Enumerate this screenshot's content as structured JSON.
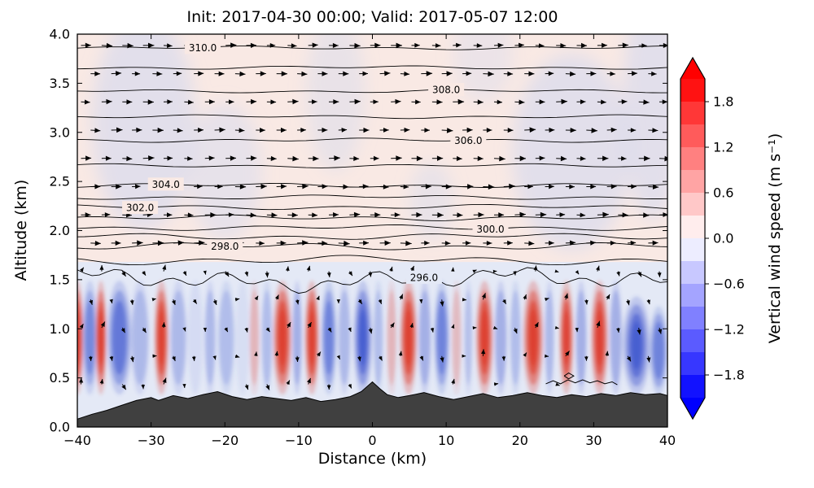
{
  "chart_data": {
    "type": "heatmap",
    "subtype": "filled-contour-atmospheric-cross-section with theta contours, wind quiver and terrain",
    "title": "Init: 2017-04-30 00:00; Valid: 2017-05-07 12:00",
    "xlabel": "Distance (km)",
    "ylabel": "Altitude (km)",
    "xlim": [
      -40,
      40
    ],
    "ylim": [
      0.0,
      4.0
    ],
    "x_tick_labels": [
      "−40",
      "−30",
      "−20",
      "−10",
      "0",
      "10",
      "20",
      "30",
      "40"
    ],
    "y_tick_labels": [
      "0.0",
      "0.5",
      "1.0",
      "1.5",
      "2.0",
      "2.5",
      "3.0",
      "3.5",
      "4.0"
    ],
    "grid": false,
    "colorbar": {
      "label": "Vertical wind speed (m s⁻¹)",
      "tick_labels": [
        "1.8",
        "1.2",
        "0.6",
        "0.0",
        "−0.6",
        "−1.2",
        "−1.8"
      ],
      "vmin": -2.1,
      "vmax": 2.1,
      "band_step": 0.3,
      "cmap": "bwr",
      "extend": "both",
      "color_positive": "#ff0000",
      "color_negative": "#0000ff",
      "color_zero": "#ffffff"
    },
    "background": {
      "upper_fill": "#f9e9e4",
      "lower_fill": "#e4e9f6",
      "split_altitude_km": 1.68,
      "patch_color": "#ccd6f2",
      "patches": [
        {
          "x": -31,
          "y": 3.1,
          "rx": 7,
          "ry": 1.1,
          "a": 0.5
        },
        {
          "x": -20,
          "y": 2.6,
          "rx": 5,
          "ry": 0.7,
          "a": 0.4
        },
        {
          "x": -5,
          "y": 3.4,
          "rx": 4,
          "ry": 0.8,
          "a": 0.35
        },
        {
          "x": 8,
          "y": 2.3,
          "rx": 3,
          "ry": 0.4,
          "a": 0.35
        },
        {
          "x": 27,
          "y": 2.8,
          "rx": 8,
          "ry": 1.0,
          "a": 0.5
        },
        {
          "x": 38,
          "y": 3.3,
          "rx": 4,
          "ry": 1.2,
          "a": 0.5
        },
        {
          "x": 15,
          "y": 3.8,
          "rx": 4,
          "ry": 0.5,
          "a": 0.3
        }
      ]
    },
    "theta_contours": {
      "units": "K",
      "interval": 1.0,
      "line_color": "#000000",
      "label_format": "%.1f",
      "lines": [
        {
          "level": 296,
          "y": 1.5,
          "amp": 0.09
        },
        {
          "level": 297,
          "y": 1.7,
          "amp": 0.05
        },
        {
          "level": 298,
          "y": 1.84,
          "amp": 0.04
        },
        {
          "level": 299,
          "y": 1.94,
          "amp": 0.035
        },
        {
          "level": 300,
          "y": 2.03,
          "amp": 0.03
        },
        {
          "level": 301,
          "y": 2.13,
          "amp": 0.03
        },
        {
          "level": 302,
          "y": 2.24,
          "amp": 0.027
        },
        {
          "level": 303,
          "y": 2.34,
          "amp": 0.025
        },
        {
          "level": 304,
          "y": 2.46,
          "amp": 0.025
        },
        {
          "level": 305,
          "y": 2.66,
          "amp": 0.022
        },
        {
          "level": 306,
          "y": 2.92,
          "amp": 0.022
        },
        {
          "level": 307,
          "y": 3.16,
          "amp": 0.02
        },
        {
          "level": 308,
          "y": 3.42,
          "amp": 0.02
        },
        {
          "level": 309,
          "y": 3.66,
          "amp": 0.02
        },
        {
          "level": 310,
          "y": 3.86,
          "amp": 0.02
        },
        {
          "level": 311,
          "y": 4.02,
          "amp": 0.02
        }
      ],
      "labels": [
        {
          "level": 310,
          "x": -23
        },
        {
          "level": 308,
          "x": 10
        },
        {
          "level": 306,
          "x": 13
        },
        {
          "level": 304,
          "x": -28
        },
        {
          "level": 302,
          "x": -31.5
        },
        {
          "level": 300,
          "x": 16
        },
        {
          "level": 298,
          "x": -20
        },
        {
          "level": 296,
          "x": 7
        }
      ]
    },
    "updraft_cells_format": [
      "x_km",
      "halfwidth_km",
      "sign(+1 up / -1 down)",
      "intensity_0to1",
      "optional_halfheight_km"
    ],
    "updraft_cells": [
      [
        -40,
        0.9,
        1,
        0.95
      ],
      [
        -38.3,
        1.1,
        -1,
        0.65
      ],
      [
        -36.8,
        0.8,
        1,
        0.95
      ],
      [
        -34.3,
        1.7,
        -1,
        0.8
      ],
      [
        -31.5,
        1.3,
        -1,
        0.5
      ],
      [
        -28.6,
        1.0,
        1,
        1.0
      ],
      [
        -26.3,
        1.2,
        -1,
        0.5
      ],
      [
        -24,
        1.0,
        -1,
        0.35
      ],
      [
        -22,
        0.8,
        -1,
        0.5
      ],
      [
        -19.8,
        1.2,
        -1,
        0.45
      ],
      [
        -17.6,
        0.9,
        -1,
        0.3
      ],
      [
        -16,
        0.7,
        1,
        0.45
      ],
      [
        -14.3,
        0.8,
        -1,
        0.45
      ],
      [
        -12.2,
        1.3,
        1,
        1.0
      ],
      [
        -10.2,
        0.7,
        -1,
        0.6
      ],
      [
        -8.2,
        1.0,
        1,
        1.0
      ],
      [
        -5.9,
        1.1,
        -1,
        0.7
      ],
      [
        -3.8,
        0.9,
        -1,
        0.5
      ],
      [
        -1.3,
        1.3,
        -1,
        0.85
      ],
      [
        0.8,
        0.7,
        -1,
        0.45
      ],
      [
        2.6,
        0.7,
        1,
        0.45
      ],
      [
        4.9,
        1.2,
        1,
        1.0
      ],
      [
        7.1,
        0.9,
        -1,
        0.6
      ],
      [
        9.4,
        1.1,
        -1,
        0.7
      ],
      [
        11.4,
        0.7,
        1,
        0.4
      ],
      [
        13,
        0.6,
        -1,
        0.4
      ],
      [
        15.2,
        1.2,
        1,
        1.0
      ],
      [
        17.4,
        0.9,
        -1,
        0.6
      ],
      [
        19.4,
        0.8,
        -1,
        0.45
      ],
      [
        21.8,
        1.4,
        1,
        1.0
      ],
      [
        24,
        0.7,
        -1,
        0.5
      ],
      [
        26.3,
        1.0,
        1,
        0.9
      ],
      [
        28.3,
        0.8,
        -1,
        0.6
      ],
      [
        30.8,
        1.2,
        1,
        0.95
      ],
      [
        33,
        0.9,
        -1,
        0.6
      ],
      [
        35.8,
        1.9,
        -1,
        0.85,
        0.5
      ],
      [
        38.8,
        1.3,
        -1,
        0.7,
        0.45
      ]
    ],
    "cell_fill_positive": "#dd3b2b",
    "cell_fill_negative": "#3f56cf",
    "quiver": {
      "arrow_color": "#000000",
      "grid_dx_km": 2.8,
      "grid_dy_km": 0.2875,
      "upper_flow": "horizontal toward +x",
      "lower_flow": "weak, aligned with updraft/downdraft cells"
    },
    "terrain": {
      "fill": "#404040",
      "outline": "#000000",
      "points": [
        [
          -40,
          0.08
        ],
        [
          -38,
          0.13
        ],
        [
          -36,
          0.17
        ],
        [
          -34,
          0.22
        ],
        [
          -32,
          0.27
        ],
        [
          -30,
          0.3
        ],
        [
          -29,
          0.27
        ],
        [
          -27,
          0.32
        ],
        [
          -25,
          0.29
        ],
        [
          -23,
          0.33
        ],
        [
          -21,
          0.36
        ],
        [
          -19,
          0.31
        ],
        [
          -17,
          0.28
        ],
        [
          -15,
          0.31
        ],
        [
          -13,
          0.29
        ],
        [
          -11,
          0.27
        ],
        [
          -9,
          0.3
        ],
        [
          -7,
          0.26
        ],
        [
          -5,
          0.28
        ],
        [
          -3,
          0.31
        ],
        [
          -1.5,
          0.36
        ],
        [
          0,
          0.46
        ],
        [
          1,
          0.39
        ],
        [
          2,
          0.33
        ],
        [
          3.5,
          0.3
        ],
        [
          5,
          0.32
        ],
        [
          7,
          0.35
        ],
        [
          9,
          0.31
        ],
        [
          11,
          0.28
        ],
        [
          13,
          0.31
        ],
        [
          15,
          0.34
        ],
        [
          17,
          0.3
        ],
        [
          19,
          0.32
        ],
        [
          21,
          0.35
        ],
        [
          23,
          0.32
        ],
        [
          25,
          0.3
        ],
        [
          27,
          0.33
        ],
        [
          29,
          0.31
        ],
        [
          31,
          0.34
        ],
        [
          33,
          0.32
        ],
        [
          35,
          0.35
        ],
        [
          37,
          0.33
        ],
        [
          39,
          0.34
        ],
        [
          40,
          0.32
        ]
      ]
    },
    "w_zero_contours": [
      [
        [
          23.5,
          0.44
        ],
        [
          24.5,
          0.47
        ],
        [
          25.5,
          0.44
        ],
        [
          26.5,
          0.48
        ],
        [
          27.5,
          0.45
        ],
        [
          28.5,
          0.48
        ],
        [
          29.5,
          0.45
        ],
        [
          30.5,
          0.47
        ],
        [
          31.5,
          0.44
        ],
        [
          32.5,
          0.46
        ],
        [
          33.2,
          0.43
        ]
      ],
      [
        [
          26.0,
          0.52
        ],
        [
          26.6,
          0.55
        ],
        [
          27.3,
          0.52
        ],
        [
          26.6,
          0.49
        ],
        [
          26.0,
          0.52
        ]
      ]
    ]
  }
}
